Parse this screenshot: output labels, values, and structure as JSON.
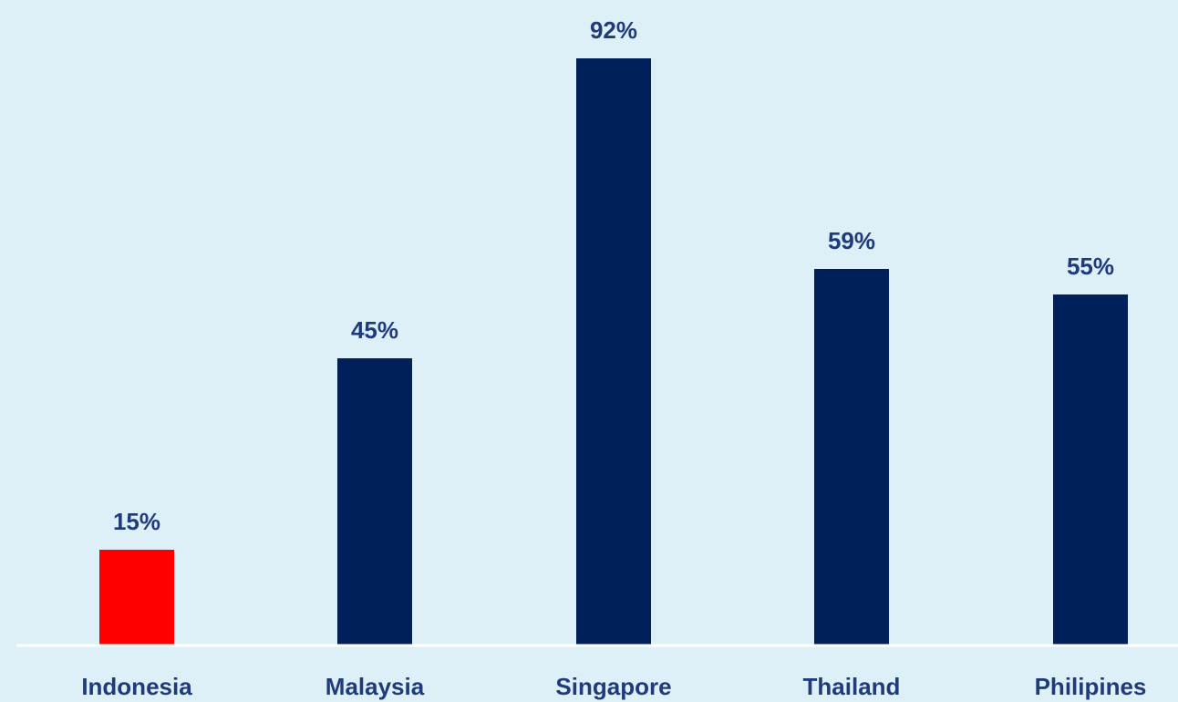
{
  "chart_data": {
    "type": "bar",
    "categories": [
      "Indonesia",
      "Malaysia",
      "Singapore",
      "Thailand",
      "Philipines"
    ],
    "values": [
      15,
      45,
      92,
      59,
      55
    ],
    "value_labels": [
      "15%",
      "45%",
      "92%",
      "59%",
      "55%"
    ],
    "title": "",
    "xlabel": "",
    "ylabel": "",
    "ylim": [
      0,
      100
    ],
    "grid": false,
    "legend": "none",
    "colors": {
      "default_bar": "#00205b",
      "highlight_bar": "#ff0000",
      "label_text": "#1f3b7a",
      "baseline": "#ffffff",
      "background": "#ddf0f8"
    },
    "highlight_category": "Indonesia"
  }
}
